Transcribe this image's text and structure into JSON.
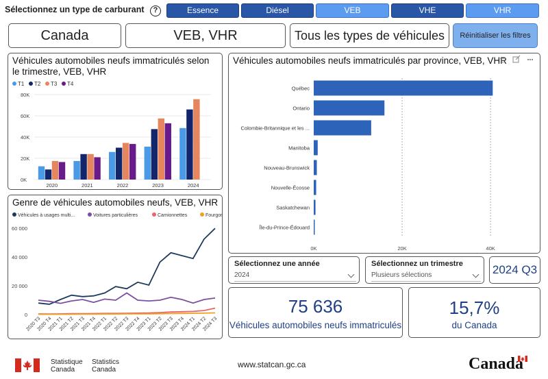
{
  "fuel_selector": {
    "label": "Sélectionnez un type de carburant",
    "help_icon": "?",
    "buttons": [
      {
        "label": "Essence",
        "selected": false
      },
      {
        "label": "Diésel",
        "selected": false
      },
      {
        "label": "VEB",
        "selected": true
      },
      {
        "label": "VHE",
        "selected": false
      },
      {
        "label": "VHR",
        "selected": true
      }
    ]
  },
  "filters": {
    "geography": "Canada",
    "fuel_types": "VEB, VHR",
    "vehicle_types": "Tous les types de véhicules",
    "reset_label": "Réinitialiser les filtres"
  },
  "quarterly_panel": {
    "title": "Véhicules automobiles neufs immatriculés selon le trimestre, VEB, VHR",
    "chart_data": {
      "type": "bar",
      "categories": [
        "2020",
        "2021",
        "2022",
        "2023",
        "2024"
      ],
      "series": [
        {
          "name": "T1",
          "color": "#4a9ae6",
          "values": [
            12500,
            17500,
            26000,
            31000,
            48500
          ]
        },
        {
          "name": "T2",
          "color": "#13266b",
          "values": [
            9500,
            24000,
            30000,
            47500,
            66000
          ]
        },
        {
          "name": "T3",
          "color": "#e5865e",
          "values": [
            17500,
            24000,
            34500,
            57500,
            75636
          ]
        },
        {
          "name": "T4",
          "color": "#6a1b8a",
          "values": [
            16500,
            21000,
            33500,
            53000,
            null
          ]
        }
      ],
      "yticks": [
        "0K",
        "20K",
        "40K",
        "60K",
        "80K"
      ],
      "ylim": [
        0,
        80000
      ]
    }
  },
  "gender_panel": {
    "title": "Genre de véhicules automobiles neufs, VEB, VHR",
    "chart_data": {
      "type": "line",
      "x": [
        "2020 T3",
        "2020 T4",
        "2021 T1",
        "2021 T2",
        "2021 T3",
        "2021 T4",
        "2022 T1",
        "2022 T2",
        "2022 T3",
        "2022 T4",
        "2023 T1",
        "2023 T2",
        "2023 T3",
        "2023 T4",
        "2024 T1",
        "2024 T2",
        "2024 T3"
      ],
      "series": [
        {
          "name": "Véhicules à usages multi...",
          "color": "#1b3a5c",
          "values": [
            8000,
            7200,
            10500,
            13500,
            12500,
            13000,
            15000,
            19500,
            18000,
            22500,
            20500,
            36500,
            43000,
            41000,
            39000,
            52500,
            60000
          ]
        },
        {
          "name": "Voitures particulières",
          "color": "#7b4fa0",
          "values": [
            10000,
            9200,
            7800,
            9500,
            10500,
            8500,
            10800,
            10000,
            15000,
            10000,
            9500,
            10000,
            12000,
            10500,
            8000,
            10500,
            11500
          ]
        },
        {
          "name": "Camionnettes",
          "color": "#e8646b",
          "values": [
            500,
            400,
            500,
            600,
            600,
            700,
            800,
            800,
            900,
            1000,
            1100,
            1400,
            1800,
            2000,
            2200,
            2800,
            4500
          ]
        },
        {
          "name": "Fourgonnettes",
          "color": "#f0a020",
          "values": [
            200,
            200,
            200,
            250,
            300,
            300,
            400,
            400,
            500,
            500,
            500,
            600,
            700,
            800,
            900,
            1000,
            1200
          ]
        }
      ],
      "yticks": [
        "0",
        "20 000",
        "40 000",
        "60 000"
      ],
      "ylim": [
        0,
        62000
      ]
    }
  },
  "province_panel": {
    "title": "Véhicules automobiles neufs immatriculés par province, VEB, VHR",
    "chart_data": {
      "type": "bar",
      "orientation": "horizontal",
      "categories": [
        "Québec",
        "Ontario",
        "Colombie-Britannique et les ...",
        "Manitoba",
        "Nouveau-Brunswick",
        "Nouvelle-Écosse",
        "Saskatchewan",
        "Île-du-Prince-Édouard"
      ],
      "values": [
        40500,
        16000,
        13000,
        900,
        700,
        550,
        400,
        200
      ],
      "color": "#2d63b8",
      "xticks": [
        "0K",
        "20K",
        "40K"
      ],
      "xlim": [
        0,
        42000
      ]
    }
  },
  "year_selector": {
    "title": "Sélectionnez une année",
    "value": "2024"
  },
  "quarter_selector": {
    "title": "Sélectionnez un trimestre",
    "value": "Plusieurs sélections"
  },
  "period_badge": "2024 Q3",
  "kpi_registrations": {
    "value": "75 636",
    "label": "Véhicules automobiles neufs immatriculés"
  },
  "kpi_share": {
    "value": "15,7%",
    "label": "du Canada"
  },
  "footer": {
    "statcan_en_1": "Statistique",
    "statcan_en_2": "Canada",
    "statcan_fr_1": "Statistics",
    "statcan_fr_2": "Canada",
    "url": "www.statcan.gc.ca",
    "wordmark": "Canada"
  }
}
